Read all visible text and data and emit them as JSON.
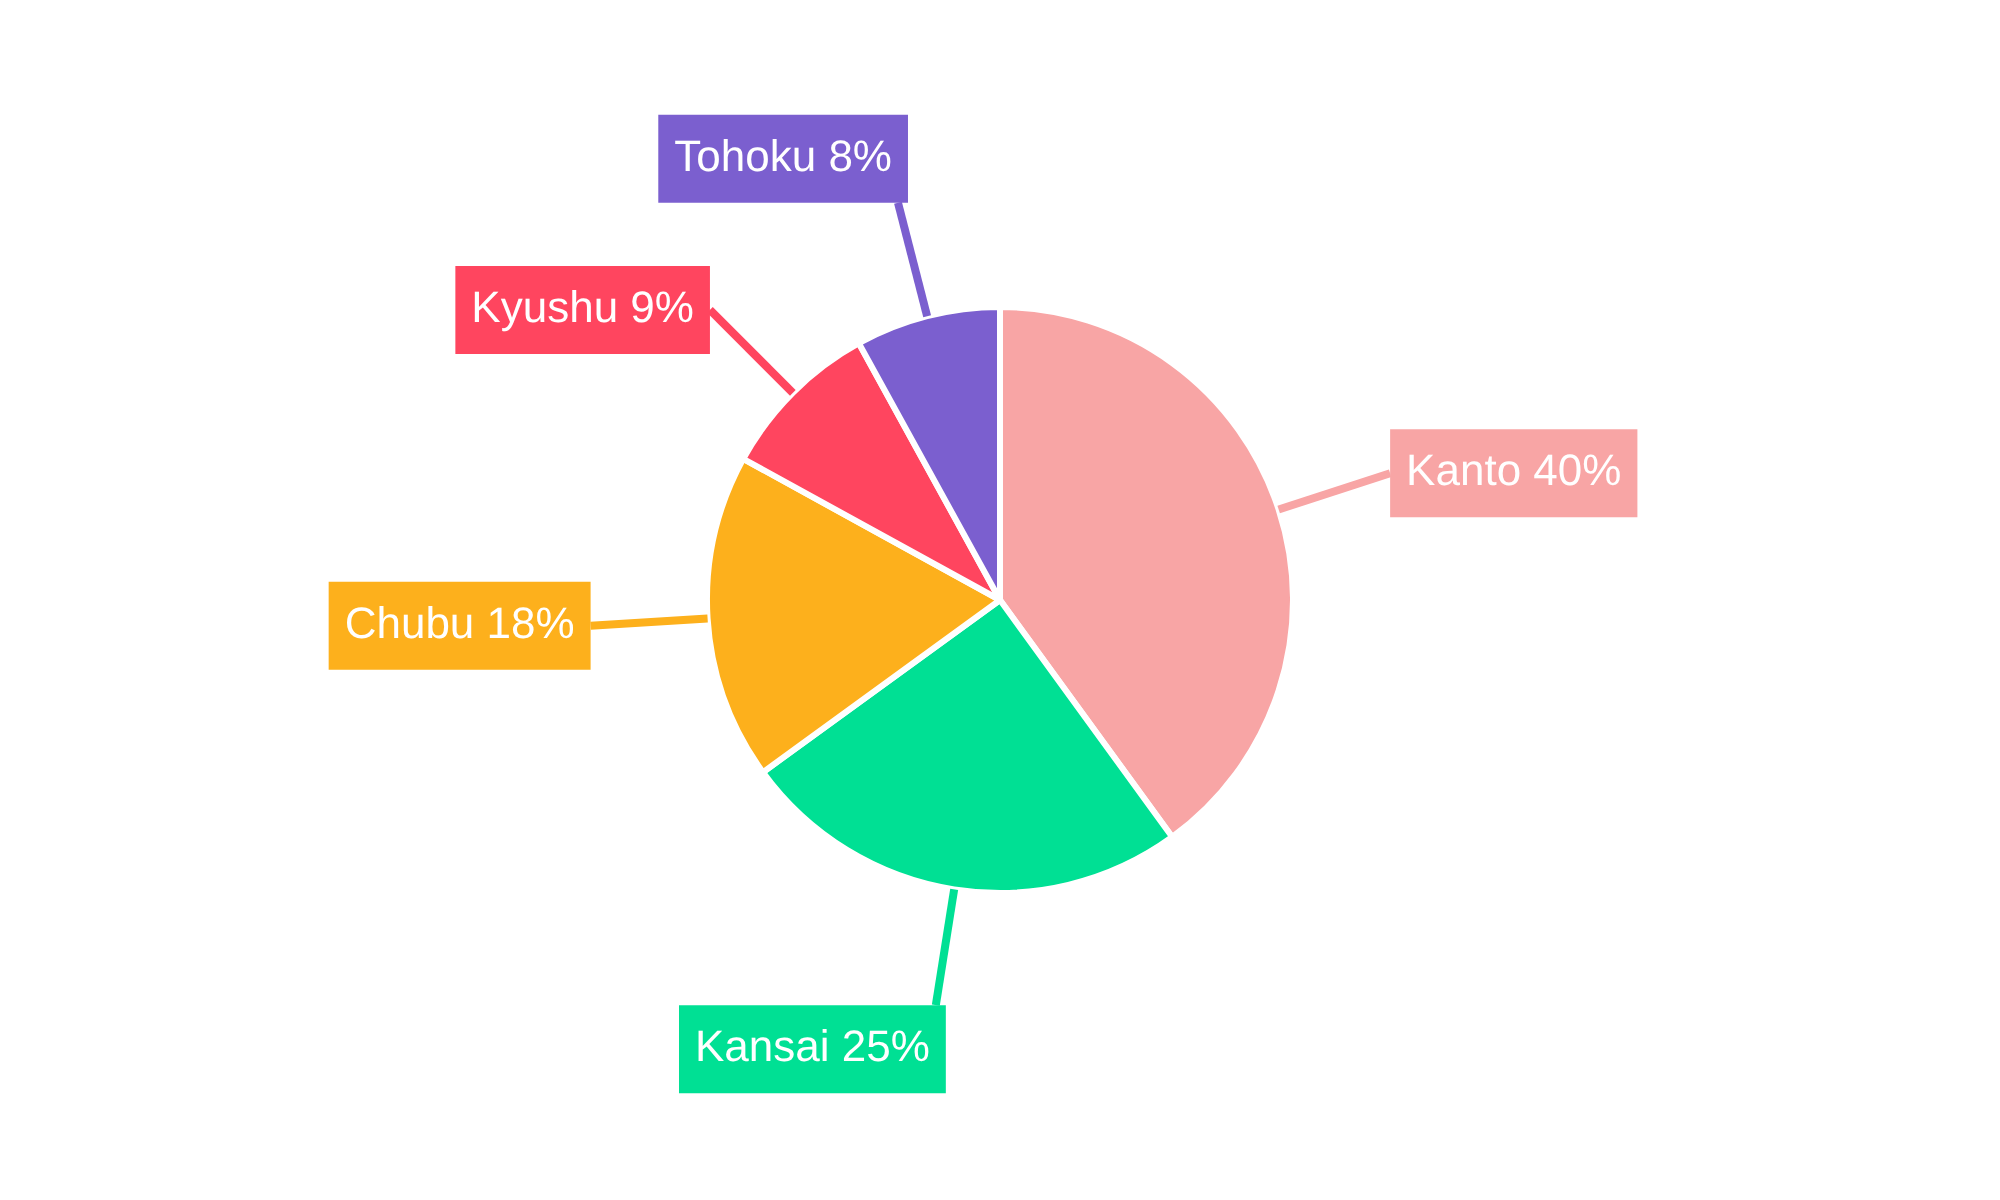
{
  "chart_data": {
    "type": "pie",
    "categories": [
      "Kanto",
      "Kansai",
      "Chubu",
      "Kyushu",
      "Tohoku"
    ],
    "values": [
      40,
      25,
      18,
      9,
      8
    ],
    "colors": [
      "#f8a5a5",
      "#00e094",
      "#fdb01c",
      "#ff455f",
      "#7b5fcf"
    ],
    "value_labels": [
      "40%",
      "25%",
      "18%",
      "9%",
      "8%"
    ],
    "legend": false
  }
}
